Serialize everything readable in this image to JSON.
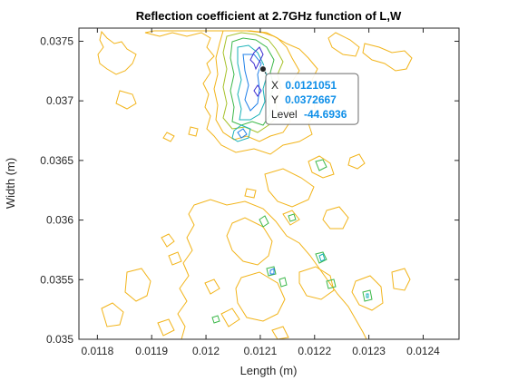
{
  "chart_data": {
    "type": "contour",
    "title": "Reflection coefficient at 2.7GHz function of L,W",
    "xlabel": "Length (m)",
    "ylabel": "Width (m)",
    "xlim": [
      0.011766,
      0.012466
    ],
    "ylim": [
      0.035,
      0.03761
    ],
    "xticks": [
      "0.0118",
      "0.0119",
      "0.012",
      "0.0121",
      "0.0122",
      "0.0123",
      "0.0124"
    ],
    "xtick_values": [
      0.0118,
      0.0119,
      0.012,
      0.0121,
      0.0122,
      0.0123,
      0.0124
    ],
    "yticks": [
      "0.035",
      "0.0355",
      "0.036",
      "0.0365",
      "0.037",
      "0.0375"
    ],
    "ytick_values": [
      0.035,
      0.0355,
      0.036,
      0.0365,
      0.037,
      0.0375
    ],
    "grid": false,
    "colormap": [
      "#3a2bd0",
      "#1f7fe8",
      "#19b2b8",
      "#3cb84a",
      "#a6c12a",
      "#f2b41a"
    ],
    "colormap_name": "parula",
    "datatip": {
      "x_label": "X",
      "x_value": "0.0121051",
      "y_label": "Y",
      "y_value": "0.0372667",
      "level_label": "Level",
      "level_value": "-44.6936",
      "x": 0.0121051,
      "y": 0.0372667
    }
  }
}
